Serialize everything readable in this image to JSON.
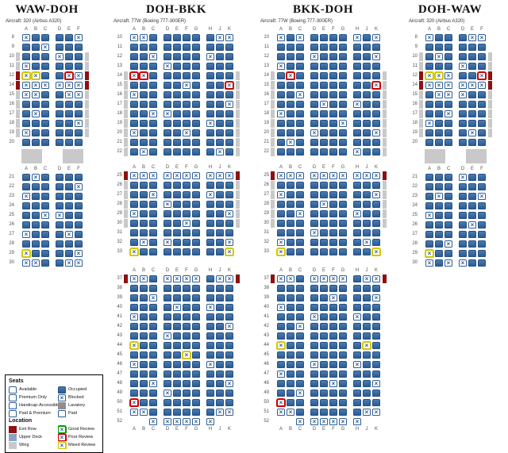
{
  "colors": {
    "occupied": "#2d5c94",
    "exit_row": "#8f1010",
    "wing": "#c9c9c9",
    "upper_deck": "#8aa2bd",
    "mixed_review": "#d6cb00",
    "poor_review": "#cc0000",
    "good_review": "#009900"
  },
  "maps": [
    {
      "id": "waw-doh",
      "title": "WAW-DOH",
      "aircraft": "Aircraft: 320 (Airbus A320)",
      "groups": [
        "ABC",
        "DEF"
      ],
      "sections": [
        {
          "gap_after": "facility",
          "rows": [
            {
              "n": "8",
              "s": "XOO OOX"
            },
            {
              "n": "9",
              "s": "OOX OOO"
            },
            {
              "n": "10",
              "l": "wing",
              "r": "wing",
              "s": "OOO XOO"
            },
            {
              "n": "11",
              "l": "wing",
              "r": "wing",
              "s": "XOO OOO"
            },
            {
              "n": "12",
              "l": "exit",
              "r": "exit",
              "s": "YYO ORX"
            },
            {
              "n": "14",
              "l": "exit",
              "r": "exit",
              "s": "XXX XXX"
            },
            {
              "n": "15",
              "l": "wing",
              "r": "wing",
              "s": "XXO OXX"
            },
            {
              "n": "16",
              "l": "wing",
              "r": "wing",
              "s": "OOO OOO"
            },
            {
              "n": "17",
              "l": "wing",
              "r": "wing",
              "s": "OXO OOO"
            },
            {
              "n": "18",
              "l": "wing",
              "r": "wing",
              "s": "OOO OOX"
            },
            {
              "n": "19",
              "l": "wing",
              "r": "wing",
              "s": "XOO OOO"
            },
            {
              "n": "20",
              "s": "OOO OOO"
            }
          ]
        },
        {
          "rows": [
            {
              "n": "21",
              "s": "OXO OOO"
            },
            {
              "n": "22",
              "s": "OOO OOX"
            },
            {
              "n": "23",
              "s": "XOO OOO"
            },
            {
              "n": "24",
              "s": "OOO OOO"
            },
            {
              "n": "25",
              "s": "OOX XOO"
            },
            {
              "n": "26",
              "s": "OOO OOO"
            },
            {
              "n": "27",
              "s": "XOO OXO"
            },
            {
              "n": "28",
              "s": "OOO OOO"
            },
            {
              "n": "29",
              "s": "YOO OOX"
            },
            {
              "n": "30",
              "s": "XXO OXX"
            }
          ]
        }
      ]
    },
    {
      "id": "doh-bkk",
      "title": "DOH-BKK",
      "aircraft": "Aircraft: 77W (Boeing 777-300ER)",
      "groups": [
        "ABC",
        "DEFG",
        "HJK"
      ],
      "sections": [
        {
          "gap_after": "s",
          "rows": [
            {
              "n": "10",
              "s": "XXO OOOO OXX"
            },
            {
              "n": "11",
              "s": "OOO OOOO OOO"
            },
            {
              "n": "12",
              "s": "OOX OOOO XOO"
            },
            {
              "n": "13",
              "s": "OOO XOOO OOO"
            },
            {
              "n": "14",
              "l": "wing",
              "r": "wing",
              "s": "RRO OOOO OOO"
            },
            {
              "n": "15",
              "l": "wing",
              "r": "wing",
              "s": "OOO OOXO OOR"
            },
            {
              "n": "16",
              "l": "wing",
              "r": "wing",
              "s": "XOO OOOO OOO"
            },
            {
              "n": "17",
              "l": "wing",
              "r": "wing",
              "s": "OOO OOOO OOX"
            },
            {
              "n": "18",
              "l": "wing",
              "r": "wing",
              "s": "OOX XOOO OOO"
            },
            {
              "n": "19",
              "l": "wing",
              "r": "wing",
              "s": "OOO OOOO XOO"
            },
            {
              "n": "20",
              "l": "wing",
              "r": "wing",
              "s": "XOO OOXO OOO"
            },
            {
              "n": "21",
              "l": "wing",
              "r": "wing",
              "s": "OOO OOOO OOO"
            },
            {
              "n": "22",
              "l": "wing",
              "r": "wing",
              "s": "OXO OOOO OXO"
            }
          ]
        },
        {
          "gap_after": "m",
          "rows": [
            {
              "n": "25",
              "l": "exit",
              "r": "exit",
              "s": "XXX XXXX XXX"
            },
            {
              "n": "26",
              "l": "wing",
              "r": "wing",
              "s": "OOO OOOO OOO"
            },
            {
              "n": "27",
              "l": "wing",
              "r": "wing",
              "s": "OOX OOOO XOO"
            },
            {
              "n": "28",
              "l": "wing",
              "r": "wing",
              "s": "OOO XOOO OOO"
            },
            {
              "n": "29",
              "l": "wing",
              "r": "wing",
              "s": "XOO OOOO OOX"
            },
            {
              "n": "30",
              "l": "wing",
              "r": "wing",
              "s": "OOO OOXO OOO"
            },
            {
              "n": "31",
              "s": "OOO OOOO OOO"
            },
            {
              "n": "32",
              "s": "OXO XOOO OOX"
            },
            {
              "n": "33",
              "s": "YOO OOOO OOY"
            }
          ]
        },
        {
          "letters_bottom": true,
          "rows": [
            {
              "n": "37",
              "l": "exit",
              "r": "exit",
              "s": "XXO XXXX OXX"
            },
            {
              "n": "38",
              "s": "OOO OOOO OOO"
            },
            {
              "n": "39",
              "s": "OOX OOOO OOO"
            },
            {
              "n": "40",
              "s": "OOO OXOO XOO"
            },
            {
              "n": "41",
              "s": "XOO OOOO OOO"
            },
            {
              "n": "42",
              "s": "OOO OOOO OOX"
            },
            {
              "n": "43",
              "s": "OOO XOOO OOO"
            },
            {
              "n": "44",
              "s": "YOO OOOO OOO"
            },
            {
              "n": "45",
              "s": "OOO OOYO OOO"
            },
            {
              "n": "46",
              "s": "XOO OOOO XOO"
            },
            {
              "n": "47",
              "s": "OOO OOOO OOO"
            },
            {
              "n": "48",
              "s": "OOX OOOO OOX"
            },
            {
              "n": "49",
              "s": "OOO XOOO OOO"
            },
            {
              "n": "50",
              "s": "ROO OOOO OOO"
            },
            {
              "n": "51",
              "s": "XXO OOOO OXX"
            },
            {
              "n": "52",
              "s": "__X XXXX X__"
            }
          ]
        }
      ]
    },
    {
      "id": "bkk-doh",
      "title": "BKK-DOH",
      "aircraft": "Aircraft: 77W (Boeing 777-300ER)",
      "groups": [
        "ABC",
        "DEFG",
        "HJK"
      ],
      "sections": [
        {
          "gap_after": "s",
          "rows": [
            {
              "n": "10",
              "s": "XOX OOOO XOX"
            },
            {
              "n": "11",
              "s": "OOO OOOO OOO"
            },
            {
              "n": "12",
              "s": "OOO XOOO OOX"
            },
            {
              "n": "13",
              "s": "XOO OOOO OOO"
            },
            {
              "n": "14",
              "l": "wing",
              "r": "wing",
              "s": "ORO OOOO OOO"
            },
            {
              "n": "15",
              "l": "wing",
              "r": "wing",
              "s": "OOO OOOO OOR"
            },
            {
              "n": "16",
              "l": "wing",
              "r": "wing",
              "s": "OOX OOOO OOO"
            },
            {
              "n": "17",
              "l": "wing",
              "r": "wing",
              "s": "OOO OXOO XOO"
            },
            {
              "n": "18",
              "l": "wing",
              "r": "wing",
              "s": "XOO OOOO OOO"
            },
            {
              "n": "19",
              "l": "wing",
              "r": "wing",
              "s": "OOO OOOX OOO"
            },
            {
              "n": "20",
              "l": "wing",
              "r": "wing",
              "s": "OOO XOOO OOX"
            },
            {
              "n": "21",
              "l": "wing",
              "r": "wing",
              "s": "OXO OOOO OOO"
            },
            {
              "n": "22",
              "l": "wing",
              "r": "wing",
              "s": "OOO OOOO XOO"
            }
          ]
        },
        {
          "gap_after": "m",
          "rows": [
            {
              "n": "25",
              "l": "exit",
              "r": "exit",
              "s": "XXX XXXX XXX"
            },
            {
              "n": "26",
              "l": "wing",
              "r": "wing",
              "s": "OOO OOOO OOO"
            },
            {
              "n": "27",
              "l": "wing",
              "r": "wing",
              "s": "XOO OOOO OOX"
            },
            {
              "n": "28",
              "l": "wing",
              "r": "wing",
              "s": "OOO OXOO OOO"
            },
            {
              "n": "29",
              "l": "wing",
              "r": "wing",
              "s": "OOX OOOO XOO"
            },
            {
              "n": "30",
              "l": "wing",
              "r": "wing",
              "s": "OOO OOOO OOO"
            },
            {
              "n": "31",
              "s": "OOO XOOO OOO"
            },
            {
              "n": "32",
              "s": "XOO OOOO OXO"
            },
            {
              "n": "33",
              "s": "YOO OOOO OOY"
            }
          ]
        },
        {
          "letters_bottom": true,
          "rows": [
            {
              "n": "37",
              "l": "exit",
              "r": "exit",
              "s": "XXO XXXX OXX"
            },
            {
              "n": "38",
              "s": "OOO OOOO OOO"
            },
            {
              "n": "39",
              "s": "OOO OOXO OOX"
            },
            {
              "n": "40",
              "s": "XOO OOOO OOO"
            },
            {
              "n": "41",
              "s": "OOO XOOO XOO"
            },
            {
              "n": "42",
              "s": "OOX OOOO OOO"
            },
            {
              "n": "43",
              "s": "OOO OOOO OOO"
            },
            {
              "n": "44",
              "s": "YOO OOOO OYO"
            },
            {
              "n": "45",
              "s": "OOO OOOO OOO"
            },
            {
              "n": "46",
              "s": "OOO XOOO XOO"
            },
            {
              "n": "47",
              "s": "XOO OOOO OOO"
            },
            {
              "n": "48",
              "s": "OOO OOXO OOX"
            },
            {
              "n": "49",
              "s": "OOX OOOO OOO"
            },
            {
              "n": "50",
              "s": "ROO OOOO OOO"
            },
            {
              "n": "51",
              "s": "XXO OOOO OXX"
            },
            {
              "n": "52",
              "s": "__X XXXX X__"
            }
          ]
        }
      ]
    },
    {
      "id": "doh-waw",
      "title": "DOH-WAW",
      "aircraft": "Aircraft: 320 (Airbus A320)",
      "groups": [
        "ABC",
        "DEF"
      ],
      "sections": [
        {
          "gap_after": "facility",
          "rows": [
            {
              "n": "8",
              "s": "XOO OXX"
            },
            {
              "n": "9",
              "s": "OOO OOO"
            },
            {
              "n": "10",
              "l": "wing",
              "r": "wing",
              "s": "OXO OOO"
            },
            {
              "n": "11",
              "l": "wing",
              "r": "wing",
              "s": "OOO XOO"
            },
            {
              "n": "12",
              "l": "exit",
              "r": "exit",
              "s": "YYX OOR"
            },
            {
              "n": "14",
              "l": "exit",
              "r": "exit",
              "s": "XXX XXX"
            },
            {
              "n": "15",
              "l": "wing",
              "r": "wing",
              "s": "OXX XOO"
            },
            {
              "n": "16",
              "l": "wing",
              "r": "wing",
              "s": "OOO OOO"
            },
            {
              "n": "17",
              "l": "wing",
              "r": "wing",
              "s": "OOX OOO"
            },
            {
              "n": "18",
              "l": "wing",
              "r": "wing",
              "s": "XOO OOO"
            },
            {
              "n": "19",
              "l": "wing",
              "r": "wing",
              "s": "OOO OXO"
            },
            {
              "n": "20",
              "s": "OOO OOO"
            }
          ]
        },
        {
          "rows": [
            {
              "n": "21",
              "s": "OOO XOO"
            },
            {
              "n": "22",
              "s": "OOO OOO"
            },
            {
              "n": "23",
              "s": "OXO OOX"
            },
            {
              "n": "24",
              "s": "OOO OOO"
            },
            {
              "n": "25",
              "s": "XOO OOO"
            },
            {
              "n": "26",
              "s": "OOO OXO"
            },
            {
              "n": "27",
              "s": "OOO OOO"
            },
            {
              "n": "28",
              "s": "OOX OOO"
            },
            {
              "n": "29",
              "s": "YOO OOO"
            },
            {
              "n": "30",
              "s": "XOX XOO"
            }
          ]
        }
      ]
    }
  ],
  "legend": {
    "seats_title": "Seats",
    "seat_items": [
      {
        "label": "Available",
        "icon": "available"
      },
      {
        "label": "Occupied",
        "icon": "occupied"
      },
      {
        "label": "Premium Only",
        "icon": "premium"
      },
      {
        "label": "Blocked",
        "icon": "blocked"
      },
      {
        "label": "Handicap-Accessible",
        "icon": "handicap"
      },
      {
        "label": "Lavatory",
        "icon": "lavatory"
      },
      {
        "label": "Paid & Premium",
        "icon": "paid-premium"
      },
      {
        "label": "Paid",
        "icon": "paid"
      }
    ],
    "location_title": "Location",
    "location_items": [
      {
        "label": "Exit Row",
        "icon": "exit"
      },
      {
        "label": "Good Review",
        "icon": "good"
      },
      {
        "label": "Upper Deck",
        "icon": "upper"
      },
      {
        "label": "Poor Review",
        "icon": "poor"
      },
      {
        "label": "Wing",
        "icon": "wing"
      },
      {
        "label": "Mixed Review",
        "icon": "mixed"
      }
    ]
  }
}
